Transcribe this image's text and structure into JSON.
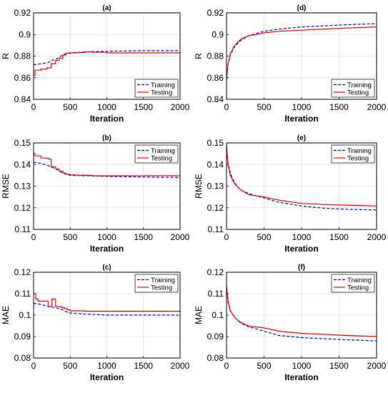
{
  "panels": [
    {
      "id": "a",
      "title": "(a)",
      "type": "line",
      "xlabel": "Iteration",
      "ylabel": "R",
      "xlim": [
        0,
        2000
      ],
      "ylim": [
        0.84,
        0.92
      ],
      "xticks": [
        0,
        500,
        1000,
        1500,
        2000
      ],
      "yticks": [
        0.84,
        0.86,
        0.88,
        0.9,
        0.92
      ],
      "ytick_labels": [
        "0.84",
        "0.86",
        "0.88",
        "0.9",
        "0.92"
      ],
      "grid": true,
      "legend": "bottom-right",
      "series": [
        {
          "name": "Training",
          "color": "#0000ff",
          "style": "dashed",
          "step": false,
          "x": [
            0,
            100,
            200,
            250,
            300,
            350,
            400,
            450,
            500,
            600,
            800,
            1000,
            1500,
            2000
          ],
          "y": [
            0.872,
            0.873,
            0.874,
            0.876,
            0.877,
            0.879,
            0.881,
            0.8825,
            0.883,
            0.8835,
            0.884,
            0.8845,
            0.885,
            0.885
          ]
        },
        {
          "name": "Testing",
          "color": "#ff0000",
          "style": "solid",
          "step": true,
          "x": [
            0,
            20,
            100,
            180,
            240,
            300,
            350,
            400,
            440,
            500,
            600,
            700,
            800,
            1000,
            2000
          ],
          "y": [
            0.862,
            0.867,
            0.868,
            0.869,
            0.873,
            0.876,
            0.878,
            0.881,
            0.8825,
            0.883,
            0.8833,
            0.884,
            0.8835,
            0.883,
            0.883
          ]
        }
      ]
    },
    {
      "id": "d",
      "title": "(d)",
      "type": "line",
      "xlabel": "Iteration",
      "ylabel": "R",
      "xlim": [
        0,
        2000
      ],
      "ylim": [
        0.84,
        0.92
      ],
      "xticks": [
        0,
        500,
        1000,
        1500,
        2000
      ],
      "yticks": [
        0.84,
        0.86,
        0.88,
        0.9,
        0.92
      ],
      "ytick_labels": [
        "0.84",
        "0.86",
        "0.88",
        "0.9",
        "0.92"
      ],
      "grid": true,
      "legend": "bottom-right",
      "series": [
        {
          "name": "Training",
          "color": "#0000ff",
          "style": "dashed",
          "step": false,
          "x": [
            0,
            20,
            50,
            100,
            150,
            200,
            300,
            400,
            500,
            700,
            1000,
            1300,
            1600,
            2000
          ],
          "y": [
            0.858,
            0.872,
            0.881,
            0.888,
            0.892,
            0.895,
            0.899,
            0.901,
            0.903,
            0.905,
            0.907,
            0.908,
            0.909,
            0.91
          ]
        },
        {
          "name": "Testing",
          "color": "#ff0000",
          "style": "solid",
          "step": false,
          "x": [
            0,
            20,
            50,
            100,
            150,
            200,
            300,
            400,
            500,
            700,
            1000,
            1300,
            1600,
            2000
          ],
          "y": [
            0.859,
            0.873,
            0.882,
            0.889,
            0.893,
            0.896,
            0.899,
            0.9,
            0.9015,
            0.903,
            0.904,
            0.905,
            0.906,
            0.907
          ]
        }
      ]
    },
    {
      "id": "b",
      "title": "(b)",
      "type": "line",
      "xlabel": "Iteration",
      "ylabel": "RMSE",
      "xlim": [
        0,
        2000
      ],
      "ylim": [
        0.11,
        0.15
      ],
      "xticks": [
        0,
        500,
        1000,
        1500,
        2000
      ],
      "yticks": [
        0.11,
        0.12,
        0.13,
        0.14,
        0.15
      ],
      "ytick_labels": [
        "0.11",
        "0.12",
        "0.13",
        "0.14",
        "0.15"
      ],
      "grid": true,
      "legend": "top-right",
      "series": [
        {
          "name": "Training",
          "color": "#0000ff",
          "style": "dashed",
          "step": false,
          "x": [
            0,
            100,
            200,
            300,
            400,
            450,
            500,
            700,
            1000,
            1500,
            2000
          ],
          "y": [
            0.141,
            0.1405,
            0.1395,
            0.138,
            0.136,
            0.1355,
            0.135,
            0.1348,
            0.1345,
            0.1342,
            0.134
          ]
        },
        {
          "name": "Testing",
          "color": "#ff0000",
          "style": "solid",
          "step": true,
          "x": [
            0,
            20,
            100,
            200,
            240,
            300,
            350,
            400,
            440,
            500,
            600,
            800,
            1000,
            2000
          ],
          "y": [
            0.145,
            0.144,
            0.143,
            0.1425,
            0.139,
            0.138,
            0.137,
            0.136,
            0.1355,
            0.1352,
            0.135,
            0.1348,
            0.1348,
            0.1348
          ]
        }
      ]
    },
    {
      "id": "e",
      "title": "(e)",
      "type": "line",
      "xlabel": "Iteration",
      "ylabel": "RMSE",
      "xlim": [
        0,
        2000
      ],
      "ylim": [
        0.11,
        0.15
      ],
      "xticks": [
        0,
        500,
        1000,
        1500,
        2000
      ],
      "yticks": [
        0.11,
        0.12,
        0.13,
        0.14,
        0.15
      ],
      "ytick_labels": [
        "0.11",
        "0.12",
        "0.13",
        "0.14",
        "0.15"
      ],
      "grid": true,
      "legend": "top-right",
      "series": [
        {
          "name": "Training",
          "color": "#0000ff",
          "style": "dashed",
          "step": false,
          "x": [
            0,
            20,
            50,
            100,
            150,
            200,
            300,
            400,
            500,
            700,
            1000,
            1300,
            1600,
            2000
          ],
          "y": [
            0.148,
            0.141,
            0.136,
            0.132,
            0.1295,
            0.128,
            0.1265,
            0.1255,
            0.1245,
            0.1225,
            0.1208,
            0.1198,
            0.1193,
            0.119
          ]
        },
        {
          "name": "Testing",
          "color": "#ff0000",
          "style": "solid",
          "step": false,
          "x": [
            0,
            20,
            50,
            100,
            150,
            200,
            300,
            400,
            500,
            700,
            1000,
            1300,
            1600,
            2000
          ],
          "y": [
            0.149,
            0.14,
            0.135,
            0.1315,
            0.1295,
            0.128,
            0.126,
            0.1255,
            0.125,
            0.1235,
            0.122,
            0.1215,
            0.1212,
            0.1208
          ]
        }
      ]
    },
    {
      "id": "c",
      "title": "(c)",
      "type": "line",
      "xlabel": "Iteration",
      "ylabel": "MAE",
      "xlim": [
        0,
        2000
      ],
      "ylim": [
        0.08,
        0.12
      ],
      "xticks": [
        0,
        500,
        1000,
        1500,
        2000
      ],
      "yticks": [
        0.08,
        0.09,
        0.1,
        0.11,
        0.12
      ],
      "ytick_labels": [
        "0.08",
        "0.09",
        "0.1",
        "0.11",
        "0.12"
      ],
      "grid": true,
      "legend": "top-right",
      "series": [
        {
          "name": "Training",
          "color": "#0000ff",
          "style": "dashed",
          "step": false,
          "x": [
            0,
            100,
            200,
            300,
            400,
            450,
            500,
            700,
            1000,
            1500,
            2000
          ],
          "y": [
            0.1055,
            0.105,
            0.104,
            0.1035,
            0.1025,
            0.1015,
            0.101,
            0.1005,
            0.1,
            0.1,
            0.1
          ]
        },
        {
          "name": "Testing",
          "color": "#ff0000",
          "style": "solid",
          "step": true,
          "x": [
            0,
            30,
            60,
            200,
            250,
            300,
            380,
            420,
            460,
            500,
            700,
            900,
            2000
          ],
          "y": [
            0.11,
            0.1075,
            0.1065,
            0.104,
            0.1075,
            0.104,
            0.1035,
            0.103,
            0.1025,
            0.102,
            0.1018,
            0.1018,
            0.1018
          ]
        }
      ]
    },
    {
      "id": "f",
      "title": "(f)",
      "type": "line",
      "xlabel": "Iteration",
      "ylabel": "MAE",
      "xlim": [
        0,
        2000
      ],
      "ylim": [
        0.08,
        0.12
      ],
      "xticks": [
        0,
        500,
        1000,
        1500,
        2000
      ],
      "yticks": [
        0.08,
        0.09,
        0.1,
        0.11,
        0.12
      ],
      "ytick_labels": [
        "0.08",
        "0.09",
        "0.1",
        "0.11",
        "0.12"
      ],
      "grid": true,
      "legend": "top-right",
      "series": [
        {
          "name": "Training",
          "color": "#0000ff",
          "style": "dashed",
          "step": false,
          "x": [
            0,
            20,
            50,
            100,
            150,
            200,
            300,
            400,
            500,
            700,
            1000,
            1300,
            1600,
            2000
          ],
          "y": [
            0.113,
            0.106,
            0.102,
            0.0995,
            0.0975,
            0.096,
            0.0945,
            0.0935,
            0.0925,
            0.0905,
            0.0895,
            0.089,
            0.0885,
            0.088
          ]
        },
        {
          "name": "Testing",
          "color": "#ff0000",
          "style": "solid",
          "step": false,
          "x": [
            0,
            20,
            50,
            100,
            150,
            200,
            300,
            400,
            500,
            700,
            1000,
            1300,
            1600,
            2000
          ],
          "y": [
            0.114,
            0.107,
            0.102,
            0.0995,
            0.0975,
            0.0965,
            0.0948,
            0.0945,
            0.094,
            0.0925,
            0.0915,
            0.091,
            0.0905,
            0.09
          ]
        }
      ]
    }
  ]
}
